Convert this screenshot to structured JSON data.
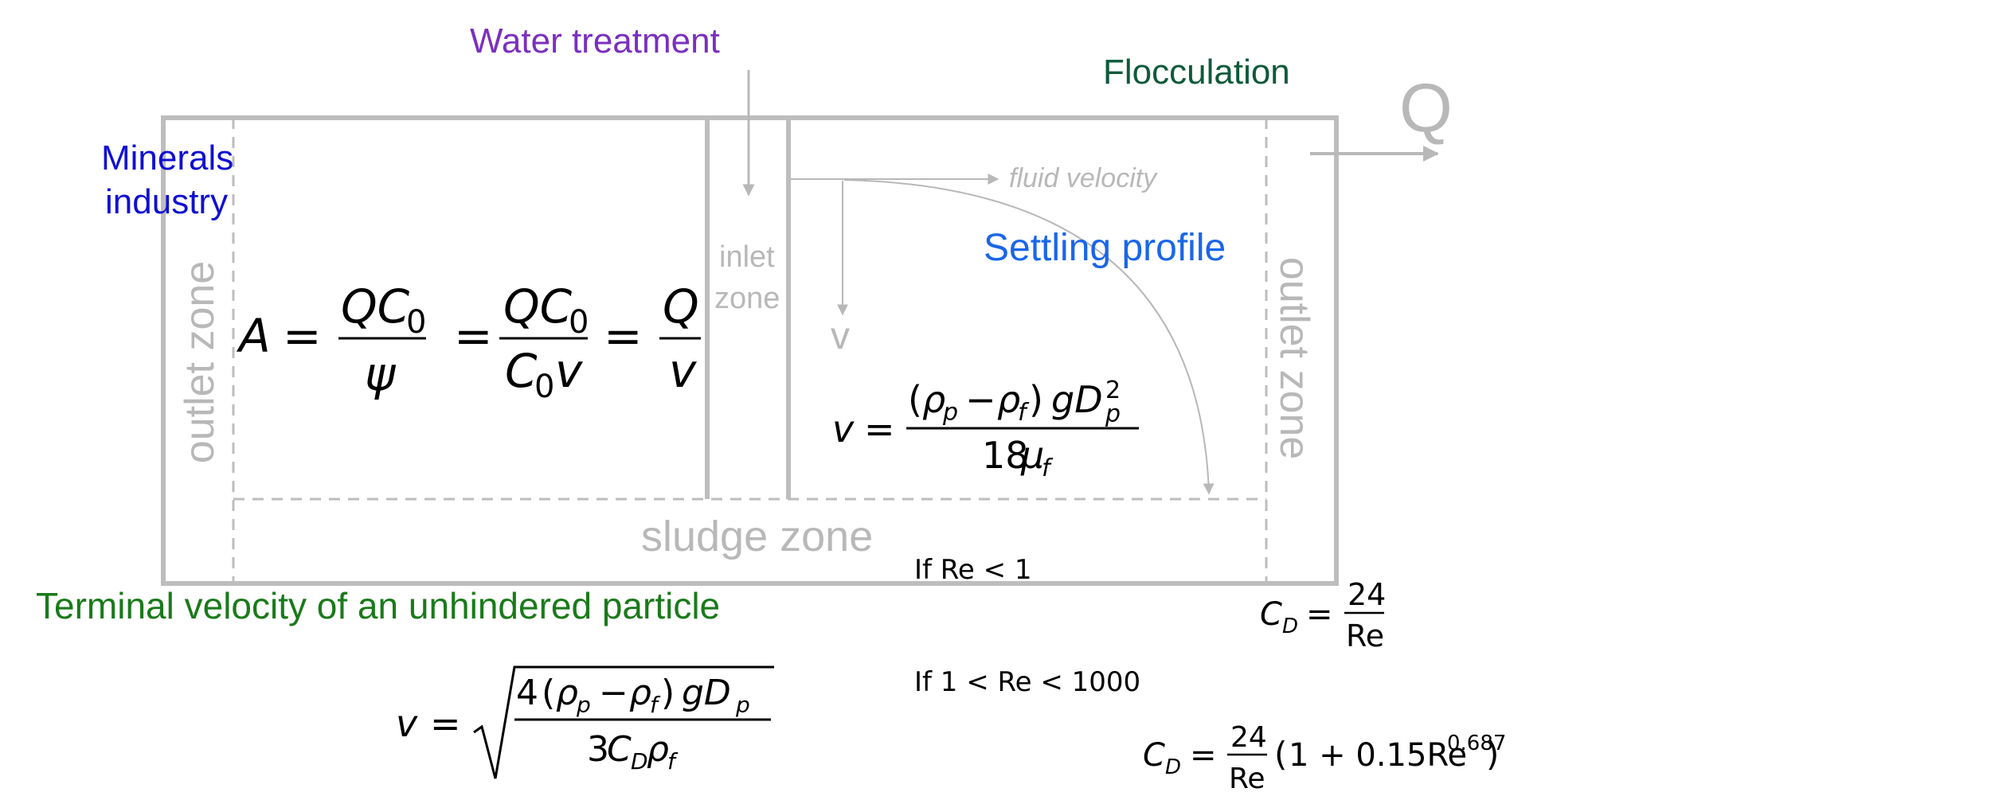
{
  "labels": {
    "water_treatment": "Water treatment",
    "flocculation": "Flocculation",
    "minerals_industry": "Minerals industry",
    "q": "Q",
    "fluid_velocity": "fluid velocity",
    "inlet": "inlet",
    "zone": "zone",
    "settling_profile": "Settling profile",
    "v": "v",
    "outlet_zone_left": "outlet zone",
    "outlet_zone_right": "outlet zone",
    "sludge_zone": "sludge zone",
    "terminal_velocity": "Terminal velocity of an unhindered particle",
    "if_re_lt_1": "If Re < 1",
    "if_1_lt_re_lt_1000": "If 1 < Re < 1000"
  },
  "colors": {
    "purple": "#7b2fbe",
    "dark_green": "#0e5a3a",
    "blue": "#1010d0",
    "light_blue": "#1a66e8",
    "green": "#1a7a1a",
    "grey": "#b8b8b8",
    "black": "#000000"
  }
}
